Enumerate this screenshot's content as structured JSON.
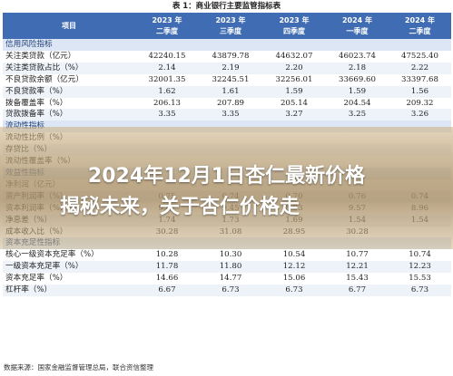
{
  "table_title": "表 1：商业银行主要监管指标表",
  "columns": [
    "项目",
    "2023 年\n二季度",
    "2023 年\n三季度",
    "2023 年\n四季度",
    "2024 年\n一季度",
    "2024 年\n二季度"
  ],
  "rows": [
    {
      "type": "section",
      "label": "信用风险指标"
    },
    {
      "type": "data",
      "label": "关注类贷款（亿元）",
      "values": [
        "42240.15",
        "43879.78",
        "44632.07",
        "46023.74",
        "47525.40"
      ]
    },
    {
      "type": "data",
      "label": "关注类贷款占比（%）",
      "values": [
        "2.14",
        "2.19",
        "2.20",
        "2.18",
        "2.22"
      ]
    },
    {
      "type": "data",
      "label": "不良贷款余额（亿元）",
      "values": [
        "32001.35",
        "32245.51",
        "32256.01",
        "33669.60",
        "33397.68"
      ]
    },
    {
      "type": "data",
      "label": "不良贷款率（%）",
      "values": [
        "1.62",
        "1.61",
        "1.59",
        "1.59",
        "1.56"
      ]
    },
    {
      "type": "data",
      "label": "拨备覆盖率（%）",
      "values": [
        "206.13",
        "207.89",
        "205.14",
        "204.54",
        "209.32"
      ]
    },
    {
      "type": "data",
      "label": "贷款拨备率（%）",
      "values": [
        "3.35",
        "3.35",
        "3.27",
        "3.25",
        "3.26"
      ]
    },
    {
      "type": "section",
      "label": "流动性指标"
    },
    {
      "type": "data",
      "label": "流动性比例（%）",
      "values": [
        "",
        "",
        "",
        "",
        ""
      ]
    },
    {
      "type": "data",
      "label": "存贷比（%）",
      "values": [
        "",
        "",
        "",
        "",
        ""
      ]
    },
    {
      "type": "data",
      "label": "流动性覆盖率（%）",
      "values": [
        "",
        "",
        "",
        "",
        ""
      ]
    },
    {
      "type": "section",
      "label": "效益性指标"
    },
    {
      "type": "data",
      "label": "净利润（亿元）",
      "values": [
        "",
        "",
        "",
        "",
        ""
      ]
    },
    {
      "type": "data",
      "label": "资产利润率（%）",
      "values": [
        "0.75",
        "0.74",
        "0.70",
        "0.76",
        "0.74"
      ]
    },
    {
      "type": "data",
      "label": "资本利润率（%）",
      "values": [
        "9.67",
        "9.45",
        "8.93",
        "9.57",
        "8.96"
      ]
    },
    {
      "type": "data",
      "label": "净息差（%）",
      "values": [
        "1.74",
        "1.73",
        "1.69",
        "1.54",
        "1.54"
      ]
    },
    {
      "type": "data",
      "label": "成本收入比（%）",
      "values": [
        "30.28",
        "31.08",
        "28.95",
        "30.28",
        ""
      ]
    },
    {
      "type": "section",
      "label": "资本充足性指标"
    },
    {
      "type": "data",
      "label": "核心一级资本充足率（%）",
      "values": [
        "10.28",
        "10.30",
        "10.54",
        "10.77",
        "10.74"
      ]
    },
    {
      "type": "data",
      "label": "一级资本充足率（%）",
      "values": [
        "11.78",
        "11.80",
        "12.12",
        "12.21",
        "12.23"
      ]
    },
    {
      "type": "data",
      "label": "资本充足率（%）",
      "values": [
        "14.66",
        "14.77",
        "15.06",
        "15.43",
        "15.53"
      ]
    },
    {
      "type": "data",
      "label": "杠杆率（%）",
      "values": [
        "6.67",
        "6.73",
        "6.73",
        "6.77",
        "6.73"
      ]
    }
  ],
  "source": "数据来源：国家金融监督管理总局，联合资信整理",
  "headline": {
    "line1": "2024年12月1日杏仁最新价格",
    "line2": "揭秘未来，关于杏仁价格走"
  },
  "colors": {
    "header": "#3f6cb3",
    "section": "#dce6f4",
    "overlay": "#b8986a"
  }
}
